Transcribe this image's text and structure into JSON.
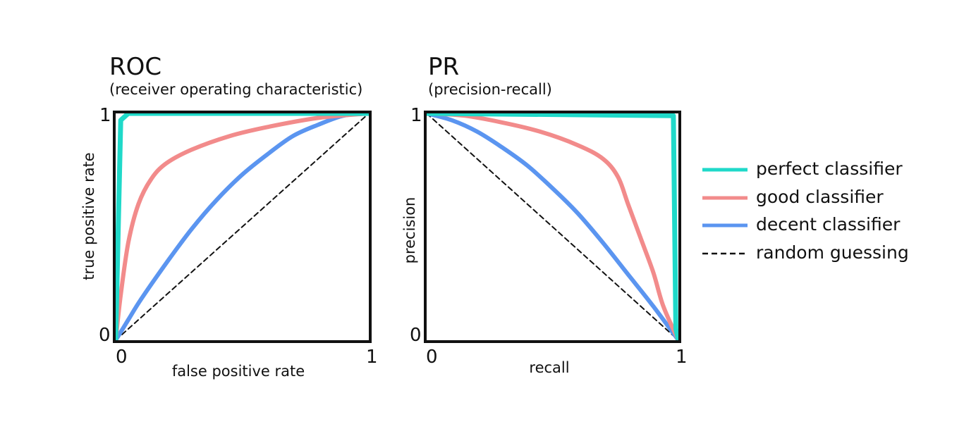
{
  "chart_data": [
    {
      "type": "line",
      "title": "ROC",
      "subtitle": "(receiver operating characteristic)",
      "xlabel": "false positive rate",
      "ylabel": "true positive rate",
      "xlim": [
        0,
        1
      ],
      "ylim": [
        0,
        1
      ],
      "x_ticks": [
        "0",
        "1"
      ],
      "y_ticks": [
        "0",
        "1"
      ],
      "grid": false,
      "series": [
        {
          "name": "perfect classifier",
          "color": "#1fd9c9",
          "style": "solid",
          "points": [
            [
              0,
              0
            ],
            [
              0.02,
              0.97
            ],
            [
              0.05,
              1.0
            ],
            [
              1,
              1
            ]
          ]
        },
        {
          "name": "good classifier",
          "color": "#f28b8b",
          "style": "solid",
          "points": [
            [
              0,
              0
            ],
            [
              0.02,
              0.2
            ],
            [
              0.05,
              0.43
            ],
            [
              0.09,
              0.6
            ],
            [
              0.14,
              0.71
            ],
            [
              0.2,
              0.78
            ],
            [
              0.3,
              0.84
            ],
            [
              0.45,
              0.9
            ],
            [
              0.6,
              0.94
            ],
            [
              0.8,
              0.98
            ],
            [
              1,
              1
            ]
          ]
        },
        {
          "name": "decent classifier",
          "color": "#5b95f0",
          "style": "solid",
          "points": [
            [
              0,
              0
            ],
            [
              0.05,
              0.09
            ],
            [
              0.1,
              0.18
            ],
            [
              0.2,
              0.34
            ],
            [
              0.3,
              0.49
            ],
            [
              0.4,
              0.62
            ],
            [
              0.5,
              0.73
            ],
            [
              0.6,
              0.82
            ],
            [
              0.7,
              0.9
            ],
            [
              0.8,
              0.95
            ],
            [
              0.9,
              0.99
            ],
            [
              1,
              1
            ]
          ]
        },
        {
          "name": "random guessing",
          "color": "#111111",
          "style": "dashed",
          "points": [
            [
              0,
              0
            ],
            [
              1,
              1
            ]
          ]
        }
      ]
    },
    {
      "type": "line",
      "title": "PR",
      "subtitle": "(precision-recall)",
      "xlabel": "recall",
      "ylabel": "precision",
      "xlim": [
        0,
        1
      ],
      "ylim": [
        0,
        1
      ],
      "x_ticks": [
        "0",
        "1"
      ],
      "y_ticks": [
        "0",
        "1"
      ],
      "grid": false,
      "series": [
        {
          "name": "perfect classifier",
          "color": "#1fd9c9",
          "style": "solid",
          "points": [
            [
              0,
              1.0
            ],
            [
              0.98,
              0.99
            ],
            [
              0.99,
              0.05
            ],
            [
              1,
              0
            ]
          ]
        },
        {
          "name": "good classifier",
          "color": "#f28b8b",
          "style": "solid",
          "points": [
            [
              0,
              1.0
            ],
            [
              0.15,
              0.99
            ],
            [
              0.3,
              0.96
            ],
            [
              0.45,
              0.92
            ],
            [
              0.6,
              0.86
            ],
            [
              0.7,
              0.8
            ],
            [
              0.76,
              0.72
            ],
            [
              0.8,
              0.6
            ],
            [
              0.85,
              0.45
            ],
            [
              0.9,
              0.3
            ],
            [
              0.94,
              0.15
            ],
            [
              1,
              0
            ]
          ]
        },
        {
          "name": "decent classifier",
          "color": "#5b95f0",
          "style": "solid",
          "points": [
            [
              0,
              1.0
            ],
            [
              0.1,
              0.97
            ],
            [
              0.2,
              0.92
            ],
            [
              0.3,
              0.85
            ],
            [
              0.4,
              0.77
            ],
            [
              0.5,
              0.67
            ],
            [
              0.6,
              0.56
            ],
            [
              0.7,
              0.43
            ],
            [
              0.8,
              0.29
            ],
            [
              0.9,
              0.15
            ],
            [
              1,
              0
            ]
          ]
        },
        {
          "name": "random guessing",
          "color": "#111111",
          "style": "dashed",
          "points": [
            [
              0,
              1
            ],
            [
              1,
              0
            ]
          ]
        }
      ]
    }
  ],
  "legend": {
    "placement": "right",
    "items": [
      {
        "label": "perfect classifier",
        "color": "#1fd9c9",
        "style": "solid"
      },
      {
        "label": "good classifier",
        "color": "#f28b8b",
        "style": "solid"
      },
      {
        "label": "decent classifier",
        "color": "#5b95f0",
        "style": "solid"
      },
      {
        "label": "random guessing",
        "color": "#111111",
        "style": "dashed"
      }
    ]
  }
}
